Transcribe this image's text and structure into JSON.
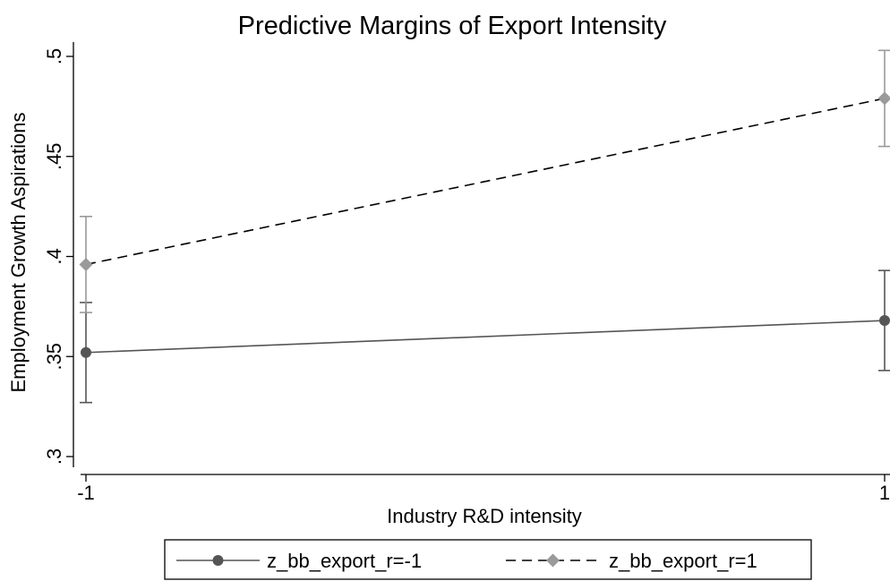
{
  "chart_data": {
    "type": "line",
    "title": "Predictive Margins of Export Intensity",
    "xlabel": "Industry R&D intensity",
    "ylabel": "Employment Growth Aspirations",
    "x": [
      -1,
      1
    ],
    "x_ticks": [
      "-1",
      "1"
    ],
    "y_ticks": [
      ".3",
      ".35",
      ".4",
      ".45",
      ".5"
    ],
    "ylim": [
      0.295,
      0.505
    ],
    "xlim": [
      -1,
      1
    ],
    "grid": false,
    "legend_position": "bottom",
    "series": [
      {
        "name": "z_bb_export_r=-1",
        "values": [
          0.352,
          0.368
        ],
        "ci_low": [
          0.327,
          0.343
        ],
        "ci_high": [
          0.377,
          0.393
        ],
        "color": "#555555",
        "ci_color": "#555555",
        "line_style": "solid",
        "marker": "circle"
      },
      {
        "name": "z_bb_export_r=1",
        "values": [
          0.396,
          0.479
        ],
        "ci_low": [
          0.372,
          0.455
        ],
        "ci_high": [
          0.42,
          0.503
        ],
        "color": "#000000",
        "ci_color": "#9a9a9a",
        "marker_color": "#9a9a9a",
        "line_style": "dashed",
        "marker": "diamond"
      }
    ]
  }
}
